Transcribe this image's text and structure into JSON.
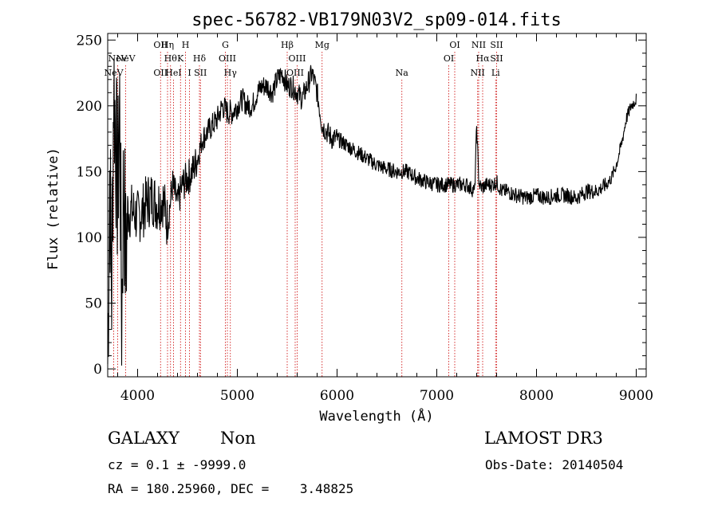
{
  "chart_data": {
    "type": "line",
    "title": "spec-56782-VB179N03V2_sp09-014.fits",
    "xlabel": "Wavelength (Å)",
    "ylabel": "Flux (relative)",
    "xlim": [
      3700,
      9100
    ],
    "ylim": [
      -6,
      255
    ],
    "x_ticks": [
      4000,
      5000,
      6000,
      7000,
      8000,
      9000
    ],
    "y_ticks": [
      0,
      50,
      100,
      150,
      200,
      250
    ],
    "grid": false,
    "legend": "none",
    "series": [
      {
        "x": [
          3700,
          3720,
          3740,
          3760,
          3780,
          3800,
          3820,
          3840,
          3860,
          3880,
          3900,
          3950,
          4000,
          4050,
          4100,
          4150,
          4200,
          4250,
          4300,
          4350,
          4400,
          4450,
          4500,
          4550,
          4600,
          4650,
          4700,
          4750,
          4800,
          4850,
          4900,
          4950,
          5000,
          5050,
          5100,
          5150,
          5200,
          5250,
          5300,
          5350,
          5400,
          5450,
          5500,
          5550,
          5600,
          5650,
          5700,
          5750,
          5800,
          5820,
          5850,
          5900,
          5950,
          6000,
          6100,
          6200,
          6300,
          6400,
          6500,
          6600,
          6700,
          6800,
          6900,
          7000,
          7100,
          7200,
          7300,
          7380,
          7400,
          7420,
          7430,
          7440,
          7460,
          7500,
          7550,
          7600,
          7650,
          7700,
          7800,
          7900,
          8000,
          8100,
          8200,
          8300,
          8400,
          8500,
          8600,
          8700,
          8750,
          8800,
          8850,
          8900,
          8950,
          9000
        ],
        "y": [
          5,
          150,
          60,
          220,
          180,
          130,
          200,
          40,
          150,
          80,
          120,
          120,
          115,
          120,
          128,
          130,
          125,
          130,
          110,
          140,
          125,
          140,
          145,
          150,
          160,
          175,
          180,
          185,
          190,
          200,
          195,
          195,
          200,
          205,
          200,
          200,
          210,
          215,
          215,
          210,
          220,
          225,
          215,
          215,
          210,
          205,
          215,
          225,
          210,
          200,
          185,
          180,
          175,
          175,
          170,
          165,
          160,
          155,
          152,
          150,
          150,
          145,
          142,
          140,
          140,
          140,
          140,
          135,
          185,
          145,
          140,
          138,
          138,
          140,
          140,
          142,
          135,
          135,
          132,
          130,
          132,
          130,
          132,
          132,
          130,
          135,
          135,
          140,
          145,
          155,
          170,
          190,
          200,
          205
        ]
      }
    ],
    "line_markers": [
      {
        "x": 3760,
        "label": "NeV",
        "row": 2
      },
      {
        "x": 3800,
        "label": "NeV",
        "row": 1
      },
      {
        "x": 3880,
        "label": "NeV",
        "row": 1
      },
      {
        "x": 4230,
        "label": "OII",
        "row": 0
      },
      {
        "x": 4230,
        "label": "OII",
        "row": 2
      },
      {
        "x": 4300,
        "label": "Hη",
        "row": 0
      },
      {
        "x": 4330,
        "label": "Hθ",
        "row": 1
      },
      {
        "x": 4360,
        "label": "HeI",
        "row": 2
      },
      {
        "x": 4430,
        "label": "K",
        "row": 1
      },
      {
        "x": 4480,
        "label": "H",
        "row": 0
      },
      {
        "x": 4520,
        "label": "I",
        "row": 2
      },
      {
        "x": 4620,
        "label": "Hδ",
        "row": 1
      },
      {
        "x": 4630,
        "label": "SII",
        "row": 2
      },
      {
        "x": 4880,
        "label": "G",
        "row": 0
      },
      {
        "x": 4900,
        "label": "OIII",
        "row": 1
      },
      {
        "x": 4930,
        "label": "Hγ",
        "row": 2
      },
      {
        "x": 5500,
        "label": "Hβ",
        "row": 0
      },
      {
        "x": 5600,
        "label": "OIII",
        "row": 1
      },
      {
        "x": 5580,
        "label": "OIII",
        "row": 2
      },
      {
        "x": 5850,
        "label": "Mg",
        "row": 0
      },
      {
        "x": 6650,
        "label": "Na",
        "row": 2
      },
      {
        "x": 7180,
        "label": "OI",
        "row": 0
      },
      {
        "x": 7120,
        "label": "OI",
        "row": 1
      },
      {
        "x": 7420,
        "label": "NII",
        "row": 0
      },
      {
        "x": 7460,
        "label": "Hα",
        "row": 1
      },
      {
        "x": 7410,
        "label": "NII",
        "row": 2
      },
      {
        "x": 7600,
        "label": "SII",
        "row": 0
      },
      {
        "x": 7600,
        "label": "SII",
        "row": 1
      },
      {
        "x": 7590,
        "label": "Li",
        "row": 2
      }
    ]
  },
  "info": {
    "object_class": "GALAXY",
    "subclass": "Non",
    "survey": "LAMOST DR3",
    "cz": "cz = 0.1 ± -9999.0",
    "obs_date": "Obs-Date: 20140504",
    "coords": "RA = 180.25960, DEC =    3.48825"
  },
  "colors": {
    "spectrum": "#000000",
    "line_markers": "#cc0000",
    "axes": "#000000"
  }
}
